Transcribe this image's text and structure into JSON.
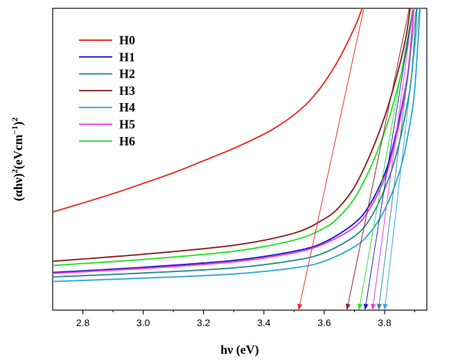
{
  "chart_data": {
    "type": "line",
    "xlabel": "hν (eV)",
    "ylabel_html": [
      "(αhν)",
      "2",
      "(eVcm",
      "−1",
      ")",
      "2"
    ],
    "xlim": [
      2.7,
      3.94
    ],
    "ylim": [
      0,
      100
    ],
    "x_ticks": [
      "2.8",
      "3.0",
      "3.2",
      "3.4",
      "3.6",
      "3.8"
    ],
    "legend_position": "top-left",
    "series": [
      {
        "name": "H0",
        "color": "#e8302a",
        "x": [
          2.7,
          2.8,
          2.9,
          3.0,
          3.1,
          3.2,
          3.3,
          3.4,
          3.45,
          3.5,
          3.55,
          3.6,
          3.65,
          3.7,
          3.72,
          3.74
        ],
        "y": [
          32.5,
          35.5,
          38.6,
          42.0,
          45.5,
          49.5,
          53.6,
          58.3,
          61.2,
          64.7,
          69.2,
          75.4,
          83.4,
          93.5,
          98.5,
          104
        ],
        "extrap_from": [
          3.74,
          104
        ],
        "extrap_to": [
          3.515,
          0
        ]
      },
      {
        "name": "H1",
        "color": "#2020c8",
        "x": [
          2.7,
          3.0,
          3.3,
          3.5,
          3.6,
          3.7,
          3.75,
          3.8,
          3.83,
          3.86,
          3.88,
          3.9
        ],
        "y": [
          12.5,
          14.2,
          16.5,
          19.5,
          22.5,
          28.8,
          34.8,
          45.0,
          55.2,
          68.8,
          80.5,
          104
        ],
        "extrap_from": [
          3.9,
          104
        ],
        "extrap_to": [
          3.735,
          0
        ]
      },
      {
        "name": "H2",
        "color": "#2e8f8f",
        "x": [
          2.7,
          3.0,
          3.3,
          3.5,
          3.6,
          3.7,
          3.75,
          3.8,
          3.84,
          3.87,
          3.89,
          3.91
        ],
        "y": [
          11.0,
          12.3,
          14.0,
          16.5,
          19.0,
          24.5,
          30.0,
          40.0,
          52.0,
          65.5,
          78.0,
          104
        ],
        "extrap_from": [
          3.91,
          104
        ],
        "extrap_to": [
          3.78,
          0
        ]
      },
      {
        "name": "H3",
        "color": "#8b2626",
        "x": [
          2.7,
          3.0,
          3.3,
          3.5,
          3.6,
          3.65,
          3.7,
          3.75,
          3.8,
          3.84,
          3.87,
          3.89
        ],
        "y": [
          16.2,
          18.5,
          21.5,
          25.5,
          30.2,
          34.2,
          40.8,
          51.0,
          64.0,
          77.5,
          90.0,
          104
        ],
        "extrap_from": [
          3.89,
          104
        ],
        "extrap_to": [
          3.675,
          0
        ]
      },
      {
        "name": "H4",
        "color": "#35a9dd",
        "x": [
          2.7,
          3.0,
          3.3,
          3.5,
          3.6,
          3.7,
          3.75,
          3.8,
          3.85,
          3.88,
          3.9,
          3.92
        ],
        "y": [
          9.5,
          10.6,
          12.0,
          14.0,
          16.2,
          21.0,
          25.5,
          33.2,
          46.0,
          59.5,
          73.5,
          104
        ],
        "extrap_from": [
          3.92,
          104
        ],
        "extrap_to": [
          3.8,
          0
        ]
      },
      {
        "name": "H5",
        "color": "#e83ee0",
        "x": [
          2.7,
          3.0,
          3.3,
          3.5,
          3.6,
          3.7,
          3.75,
          3.8,
          3.83,
          3.86,
          3.88,
          3.9
        ],
        "y": [
          12.2,
          13.8,
          16.0,
          19.0,
          22.0,
          27.5,
          33.5,
          43.5,
          53.8,
          67.5,
          80.0,
          104
        ],
        "extrap_from": [
          3.9,
          104
        ],
        "extrap_to": [
          3.76,
          0
        ]
      },
      {
        "name": "H6",
        "color": "#2be02b",
        "x": [
          2.7,
          3.0,
          3.3,
          3.5,
          3.6,
          3.65,
          3.7,
          3.75,
          3.8,
          3.84,
          3.87,
          3.9
        ],
        "y": [
          14.8,
          16.8,
          19.5,
          23.2,
          27.2,
          31.0,
          37.0,
          46.5,
          59.0,
          72.5,
          85.0,
          104
        ],
        "extrap_from": [
          3.9,
          104
        ],
        "extrap_to": [
          3.715,
          0
        ]
      }
    ]
  }
}
